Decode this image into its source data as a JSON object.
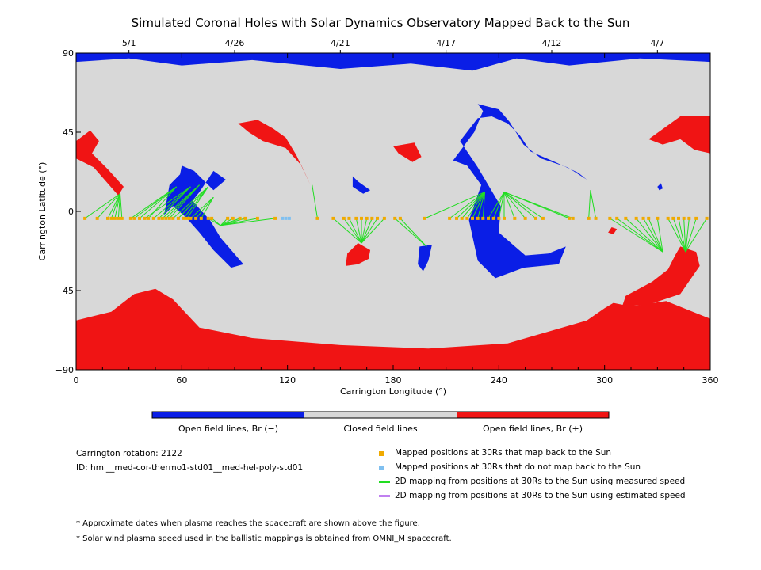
{
  "chart_data": {
    "type": "map",
    "title": "Simulated Coronal Holes with Solar Dynamics Observatory Mapped Back to the Sun",
    "xlabel": "Carrington Longitude (°)",
    "ylabel": "Carrington Latitude (°)",
    "xlim": [
      0,
      360
    ],
    "ylim": [
      -90,
      90
    ],
    "xticks": [
      "0",
      "60",
      "120",
      "180",
      "240",
      "300",
      "360"
    ],
    "yticks": [
      "−90",
      "−45",
      "0",
      "45",
      "90"
    ],
    "top_dates": [
      {
        "label": "5/1",
        "lon": 30
      },
      {
        "label": "4/26",
        "lon": 90
      },
      {
        "label": "4/21",
        "lon": 150
      },
      {
        "label": "4/17",
        "lon": 210
      },
      {
        "label": "4/12",
        "lon": 270
      },
      {
        "label": "4/7",
        "lon": 330
      }
    ],
    "colors": {
      "open_neg": "#0a1ee6",
      "closed": "#d8d8d8",
      "open_pos": "#f01414",
      "mapped": "#f0aa00",
      "unmapped": "#80c0f0",
      "measured": "#22dd22",
      "estimated": "#c080f0"
    },
    "regions": [
      {
        "polarity": "negative",
        "lonlat": [
          [
            0,
            90
          ],
          [
            360,
            90
          ],
          [
            360,
            85
          ],
          [
            320,
            87
          ],
          [
            280,
            83
          ],
          [
            250,
            87
          ],
          [
            225,
            80
          ],
          [
            190,
            84
          ],
          [
            150,
            81
          ],
          [
            100,
            86
          ],
          [
            60,
            83
          ],
          [
            30,
            87
          ],
          [
            0,
            85
          ]
        ]
      },
      {
        "polarity": "positive",
        "lonlat": [
          [
            0,
            -90
          ],
          [
            360,
            -90
          ],
          [
            360,
            -61
          ],
          [
            335,
            -51
          ],
          [
            315,
            -54
          ],
          [
            305,
            -52
          ],
          [
            300,
            -55
          ],
          [
            290,
            -62
          ],
          [
            245,
            -75
          ],
          [
            200,
            -78
          ],
          [
            150,
            -76
          ],
          [
            100,
            -72
          ],
          [
            70,
            -66
          ],
          [
            55,
            -50
          ],
          [
            45,
            -44
          ],
          [
            33,
            -47
          ],
          [
            20,
            -57
          ],
          [
            0,
            -62
          ]
        ]
      },
      {
        "polarity": "positive",
        "lonlat": [
          [
            0,
            40
          ],
          [
            8,
            46
          ],
          [
            13,
            40
          ],
          [
            9,
            33
          ],
          [
            18,
            24
          ],
          [
            27,
            14
          ],
          [
            24,
            9
          ],
          [
            17,
            17
          ],
          [
            10,
            25
          ],
          [
            0,
            30
          ]
        ]
      },
      {
        "polarity": "positive",
        "lonlat": [
          [
            92,
            50
          ],
          [
            103,
            52
          ],
          [
            112,
            47
          ],
          [
            119,
            42
          ],
          [
            125,
            32
          ],
          [
            133,
            15
          ],
          [
            128,
            26
          ],
          [
            119,
            36
          ],
          [
            106,
            40
          ],
          [
            98,
            45
          ]
        ]
      },
      {
        "polarity": "positive",
        "lonlat": [
          [
            180,
            37
          ],
          [
            192,
            39
          ],
          [
            196,
            31
          ],
          [
            191,
            28
          ],
          [
            183,
            33
          ]
        ]
      },
      {
        "polarity": "positive",
        "lonlat": [
          [
            325,
            41
          ],
          [
            343,
            54
          ],
          [
            360,
            54
          ],
          [
            360,
            33
          ],
          [
            351,
            35
          ],
          [
            343,
            41
          ],
          [
            333,
            38
          ]
        ]
      },
      {
        "polarity": "positive",
        "lonlat": [
          [
            154,
            -24
          ],
          [
            160,
            -18
          ],
          [
            167,
            -22
          ],
          [
            166,
            -27
          ],
          [
            160,
            -30
          ],
          [
            153,
            -31
          ]
        ]
      },
      {
        "polarity": "positive",
        "lonlat": [
          [
            343,
            -20
          ],
          [
            352,
            -23
          ],
          [
            354,
            -31
          ],
          [
            343,
            -47
          ],
          [
            325,
            -53
          ],
          [
            310,
            -54
          ],
          [
            312,
            -48
          ],
          [
            327,
            -40
          ],
          [
            336,
            -33
          ],
          [
            340,
            -25
          ]
        ]
      },
      {
        "polarity": "positive",
        "lonlat": [
          [
            304,
            -9
          ],
          [
            307,
            -10
          ],
          [
            305,
            -13
          ],
          [
            302,
            -12
          ]
        ]
      },
      {
        "polarity": "negative",
        "lonlat": [
          [
            50,
            -2
          ],
          [
            53,
            15
          ],
          [
            59,
            21
          ],
          [
            60,
            26
          ],
          [
            67,
            23
          ],
          [
            78,
            12
          ],
          [
            85,
            18
          ],
          [
            78,
            23
          ],
          [
            70,
            11
          ],
          [
            66,
            6
          ],
          [
            76,
            -5
          ],
          [
            82,
            -15
          ],
          [
            95,
            -30
          ],
          [
            88,
            -32
          ],
          [
            78,
            -22
          ],
          [
            70,
            -12
          ],
          [
            62,
            -3
          ],
          [
            55,
            3
          ]
        ]
      },
      {
        "polarity": "negative",
        "lonlat": [
          [
            228,
            61
          ],
          [
            240,
            58
          ],
          [
            246,
            51
          ],
          [
            254,
            38
          ],
          [
            264,
            30
          ],
          [
            279,
            25
          ],
          [
            290,
            18
          ],
          [
            285,
            22
          ],
          [
            272,
            28
          ],
          [
            258,
            34
          ],
          [
            252,
            43
          ],
          [
            245,
            50
          ],
          [
            236,
            54
          ],
          [
            228,
            53
          ],
          [
            218,
            40
          ],
          [
            228,
            25
          ],
          [
            241,
            3
          ],
          [
            240,
            -12
          ],
          [
            255,
            -25
          ],
          [
            268,
            -24
          ],
          [
            278,
            -20
          ],
          [
            274,
            -30
          ],
          [
            254,
            -32
          ],
          [
            238,
            -38
          ],
          [
            228,
            -28
          ],
          [
            223,
            -5
          ],
          [
            230,
            15
          ],
          [
            222,
            26
          ],
          [
            214,
            29
          ],
          [
            226,
            45
          ],
          [
            231,
            57
          ]
        ]
      },
      {
        "polarity": "negative",
        "lonlat": [
          [
            157,
            20
          ],
          [
            160,
            17
          ],
          [
            167,
            12
          ],
          [
            163,
            10
          ],
          [
            157,
            14
          ]
        ]
      },
      {
        "polarity": "negative",
        "lonlat": [
          [
            195,
            -20
          ],
          [
            202,
            -19
          ],
          [
            200,
            -28
          ],
          [
            197,
            -34
          ],
          [
            194,
            -30
          ]
        ]
      },
      {
        "polarity": "negative",
        "lonlat": [
          [
            330,
            14
          ],
          [
            332,
            16
          ],
          [
            333,
            13
          ],
          [
            331,
            12
          ]
        ]
      },
      {
        "polarity": "positive",
        "lonlat": [
          [
            33,
            -58
          ],
          [
            40,
            -46
          ],
          [
            37,
            -50
          ]
        ]
      }
    ],
    "footpoints": [
      {
        "lon": 25,
        "lat": 10
      },
      {
        "lon": 57,
        "lat": 14
      },
      {
        "lon": 65,
        "lat": 14
      },
      {
        "lon": 70,
        "lat": 15
      },
      {
        "lon": 75,
        "lat": 14
      },
      {
        "lon": 78,
        "lat": 8
      },
      {
        "lon": 82,
        "lat": -8
      },
      {
        "lon": 134,
        "lat": 15
      },
      {
        "lon": 162,
        "lat": -18
      },
      {
        "lon": 199,
        "lat": -20
      },
      {
        "lon": 232,
        "lat": 11
      },
      {
        "lon": 243,
        "lat": 11
      },
      {
        "lon": 292,
        "lat": 12
      },
      {
        "lon": 333,
        "lat": -23
      },
      {
        "lon": 346,
        "lat": -23
      }
    ],
    "mapped_points": [
      {
        "lon": 5,
        "lat": -4,
        "fp": 0
      },
      {
        "lon": 12,
        "lat": -4,
        "fp": 0
      },
      {
        "lon": 18,
        "lat": -4,
        "fp": 0
      },
      {
        "lon": 20,
        "lat": -4,
        "fp": 0
      },
      {
        "lon": 22,
        "lat": -4,
        "fp": 0
      },
      {
        "lon": 24,
        "lat": -4,
        "fp": 0
      },
      {
        "lon": 26,
        "lat": -4,
        "fp": 0
      },
      {
        "lon": 31,
        "lat": -4,
        "fp": 1
      },
      {
        "lon": 33,
        "lat": -4,
        "fp": 1
      },
      {
        "lon": 36,
        "lat": -4,
        "fp": 1
      },
      {
        "lon": 39,
        "lat": -4,
        "fp": 2
      },
      {
        "lon": 41,
        "lat": -4,
        "fp": 1
      },
      {
        "lon": 44,
        "lat": -4,
        "fp": 2
      },
      {
        "lon": 47,
        "lat": -4,
        "fp": 2
      },
      {
        "lon": 49,
        "lat": -4,
        "fp": 3
      },
      {
        "lon": 51,
        "lat": -4,
        "fp": 3
      },
      {
        "lon": 53,
        "lat": -4,
        "fp": 3
      },
      {
        "lon": 55,
        "lat": -4,
        "fp": 4
      },
      {
        "lon": 58,
        "lat": -4,
        "fp": 4
      },
      {
        "lon": 61,
        "lat": -4,
        "fp": 4
      },
      {
        "lon": 63,
        "lat": -4,
        "fp": 4
      },
      {
        "lon": 65,
        "lat": -4,
        "fp": 5
      },
      {
        "lon": 68,
        "lat": -4,
        "fp": 5
      },
      {
        "lon": 71,
        "lat": -4,
        "fp": 5
      },
      {
        "lon": 75,
        "lat": -4,
        "fp": 6
      },
      {
        "lon": 77,
        "lat": -4,
        "fp": 6
      },
      {
        "lon": 86,
        "lat": -4,
        "fp": 6
      },
      {
        "lon": 89,
        "lat": -4,
        "fp": 6
      },
      {
        "lon": 93,
        "lat": -4,
        "fp": 6
      },
      {
        "lon": 96,
        "lat": -4,
        "fp": 6
      },
      {
        "lon": 103,
        "lat": -4,
        "fp": 6
      },
      {
        "lon": 113,
        "lat": -4,
        "fp": 6
      },
      {
        "lon": 137,
        "lat": -4,
        "fp": 7
      },
      {
        "lon": 146,
        "lat": -4,
        "fp": 8
      },
      {
        "lon": 152,
        "lat": -4,
        "fp": 8
      },
      {
        "lon": 155,
        "lat": -4,
        "fp": 8
      },
      {
        "lon": 159,
        "lat": -4,
        "fp": 8
      },
      {
        "lon": 162,
        "lat": -4,
        "fp": 8
      },
      {
        "lon": 165,
        "lat": -4,
        "fp": 8
      },
      {
        "lon": 168,
        "lat": -4,
        "fp": 8
      },
      {
        "lon": 171,
        "lat": -4,
        "fp": 8
      },
      {
        "lon": 175,
        "lat": -4,
        "fp": 8
      },
      {
        "lon": 181,
        "lat": -4,
        "fp": 9
      },
      {
        "lon": 184,
        "lat": -4,
        "fp": 9
      },
      {
        "lon": 198,
        "lat": -4,
        "fp": 10
      },
      {
        "lon": 212,
        "lat": -4,
        "fp": 10
      },
      {
        "lon": 216,
        "lat": -4,
        "fp": 10
      },
      {
        "lon": 219,
        "lat": -4,
        "fp": 10
      },
      {
        "lon": 222,
        "lat": -4,
        "fp": 10
      },
      {
        "lon": 225,
        "lat": -4,
        "fp": 10
      },
      {
        "lon": 228,
        "lat": -4,
        "fp": 10
      },
      {
        "lon": 231,
        "lat": -4,
        "fp": 10
      },
      {
        "lon": 234,
        "lat": -4,
        "fp": 11
      },
      {
        "lon": 237,
        "lat": -4,
        "fp": 11
      },
      {
        "lon": 240,
        "lat": -4,
        "fp": 11
      },
      {
        "lon": 243,
        "lat": -4,
        "fp": 11
      },
      {
        "lon": 249,
        "lat": -4,
        "fp": 11
      },
      {
        "lon": 255,
        "lat": -4,
        "fp": 11
      },
      {
        "lon": 261,
        "lat": -4,
        "fp": 11
      },
      {
        "lon": 265,
        "lat": -4,
        "fp": 11
      },
      {
        "lon": 280,
        "lat": -4,
        "fp": 11
      },
      {
        "lon": 282,
        "lat": -4,
        "fp": 11
      },
      {
        "lon": 291,
        "lat": -4,
        "fp": 12
      },
      {
        "lon": 295,
        "lat": -4,
        "fp": 12
      },
      {
        "lon": 303,
        "lat": -4,
        "fp": 13
      },
      {
        "lon": 307,
        "lat": -4,
        "fp": 13
      },
      {
        "lon": 312,
        "lat": -4,
        "fp": 13
      },
      {
        "lon": 318,
        "lat": -4,
        "fp": 13
      },
      {
        "lon": 322,
        "lat": -4,
        "fp": 13
      },
      {
        "lon": 325,
        "lat": -4,
        "fp": 13
      },
      {
        "lon": 330,
        "lat": -4,
        "fp": 13
      },
      {
        "lon": 336,
        "lat": -4,
        "fp": 14
      },
      {
        "lon": 339,
        "lat": -4,
        "fp": 14
      },
      {
        "lon": 342,
        "lat": -4,
        "fp": 14
      },
      {
        "lon": 345,
        "lat": -4,
        "fp": 14
      },
      {
        "lon": 348,
        "lat": -4,
        "fp": 14
      },
      {
        "lon": 352,
        "lat": -4,
        "fp": 14
      },
      {
        "lon": 358,
        "lat": -4,
        "fp": 14
      }
    ],
    "unmapped_points": [
      {
        "lon": 117,
        "lat": -4
      },
      {
        "lon": 119,
        "lat": -4
      },
      {
        "lon": 121,
        "lat": -4
      }
    ],
    "colorbar": [
      {
        "label": "Open field lines, Br (−)",
        "color": "#0a1ee6"
      },
      {
        "label": "Closed field lines",
        "color": "#d8d8d8"
      },
      {
        "label": "Open field lines, Br (+)",
        "color": "#f01414"
      }
    ]
  },
  "info": {
    "rotation": "Carrington rotation: 2122",
    "id": "ID: hmi__med-cor-thermo1-std01__med-hel-poly-std01"
  },
  "legend": [
    {
      "kind": "square",
      "color": "#f0aa00",
      "label": "Mapped positions at 30Rs that map back to the Sun"
    },
    {
      "kind": "square",
      "color": "#80c0f0",
      "label": "Mapped positions at 30Rs that do not map back to the Sun"
    },
    {
      "kind": "line",
      "color": "#22dd22",
      "label": "2D mapping from positions at 30Rs to the Sun using measured speed"
    },
    {
      "kind": "line",
      "color": "#c080f0",
      "label": "2D mapping from positions at 30Rs to the Sun using estimated speed"
    }
  ],
  "notes": [
    "* Approximate dates when plasma reaches the spacecraft are shown above the figure.",
    "* Solar wind plasma speed used in the ballistic mappings is obtained from OMNI_M spacecraft."
  ]
}
